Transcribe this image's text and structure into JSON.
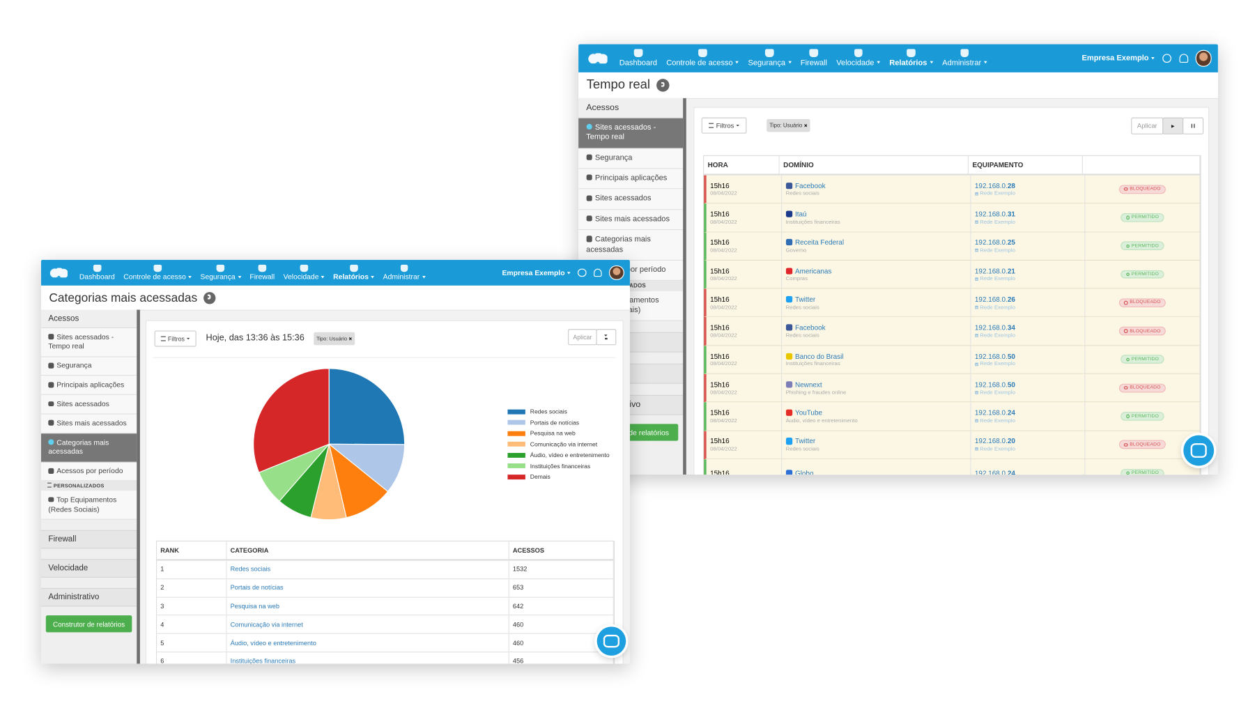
{
  "nav": {
    "items": [
      "Dashboard",
      "Controle de acesso",
      "Segurança",
      "Firewall",
      "Velocidade",
      "Relatórios",
      "Administrar"
    ],
    "company": "Empresa Exemplo"
  },
  "sidebar": {
    "section": "Acessos",
    "items": [
      "Sites acessados - Tempo real",
      "Segurança",
      "Principais aplicações",
      "Sites acessados",
      "Sites mais acessados",
      "Categorias mais acessadas",
      "Acessos por período"
    ],
    "custom_header": "PERSONALIZADOS",
    "custom_items": [
      "Top Equipamentos (Redes Sociais)"
    ],
    "sections": [
      "Firewall",
      "Velocidade",
      "Administrativo"
    ],
    "button": "Construtor de relatórios"
  },
  "realtime": {
    "title": "Tempo real",
    "filters": "Filtros",
    "tag": "Tipo: Usuário",
    "apply": "Aplicar",
    "headers": [
      "HORA",
      "DOMÍNIO",
      "EQUIPAMENTO"
    ],
    "rows": [
      {
        "time": "15h16",
        "date": "08/04/2022",
        "domain": "Facebook",
        "category": "Redes sociais",
        "ip_net": "192.168.0.",
        "ip_host": "28",
        "network": "Rede Exemplo",
        "status": "BLOQUEADO",
        "color": "#d9534f",
        "icon": "#3b5998"
      },
      {
        "time": "15h16",
        "date": "08/04/2022",
        "domain": "Itaú",
        "category": "Instituições financeiras",
        "ip_net": "192.168.0.",
        "ip_host": "31",
        "network": "Rede Exemplo",
        "status": "PERMITIDO",
        "color": "#5cb85c",
        "icon": "#1b3a8c"
      },
      {
        "time": "15h16",
        "date": "08/04/2022",
        "domain": "Receita Federal",
        "category": "Governo",
        "ip_net": "192.168.0.",
        "ip_host": "25",
        "network": "Rede Exemplo",
        "status": "PERMITIDO",
        "color": "#5cb85c",
        "icon": "#2f6db5"
      },
      {
        "time": "15h16",
        "date": "08/04/2022",
        "domain": "Americanas",
        "category": "Compras",
        "ip_net": "192.168.0.",
        "ip_host": "21",
        "network": "Rede Exemplo",
        "status": "PERMITIDO",
        "color": "#5cb85c",
        "icon": "#e0262b"
      },
      {
        "time": "15h16",
        "date": "08/04/2022",
        "domain": "Twitter",
        "category": "Redes sociais",
        "ip_net": "192.168.0.",
        "ip_host": "26",
        "network": "Rede Exemplo",
        "status": "BLOQUEADO",
        "color": "#d9534f",
        "icon": "#1da1f2"
      },
      {
        "time": "15h16",
        "date": "08/04/2022",
        "domain": "Facebook",
        "category": "Redes sociais",
        "ip_net": "192.168.0.",
        "ip_host": "34",
        "network": "Rede Exemplo",
        "status": "BLOQUEADO",
        "color": "#d9534f",
        "icon": "#3b5998"
      },
      {
        "time": "15h16",
        "date": "08/04/2022",
        "domain": "Banco do Brasil",
        "category": "Instituições financeiras",
        "ip_net": "192.168.0.",
        "ip_host": "50",
        "network": "Rede Exemplo",
        "status": "PERMITIDO",
        "color": "#5cb85c",
        "icon": "#e8c600"
      },
      {
        "time": "15h16",
        "date": "08/04/2022",
        "domain": "Newnext",
        "category": "Phishing e fraudes online",
        "ip_net": "192.168.0.",
        "ip_host": "50",
        "network": "Rede Exemplo",
        "status": "BLOQUEADO",
        "color": "#d9534f",
        "icon": "#7f7fb8"
      },
      {
        "time": "15h16",
        "date": "08/04/2022",
        "domain": "YouTube",
        "category": "Áudio, vídeo e entretenimento",
        "ip_net": "192.168.0.",
        "ip_host": "24",
        "network": "Rede Exemplo",
        "status": "PERMITIDO",
        "color": "#5cb85c",
        "icon": "#e52d27"
      },
      {
        "time": "15h16",
        "date": "08/04/2022",
        "domain": "Twitter",
        "category": "Redes sociais",
        "ip_net": "192.168.0.",
        "ip_host": "20",
        "network": "Rede Exemplo",
        "status": "BLOQUEADO",
        "color": "#d9534f",
        "icon": "#1da1f2"
      },
      {
        "time": "15h16",
        "domain": "Globo",
        "ip_net": "192.168.0.",
        "ip_host": "24",
        "status": "PERMITIDO",
        "color": "#5cb85c",
        "icon": "#2c6fd6"
      }
    ]
  },
  "categories": {
    "title": "Categorias mais acessadas",
    "filters": "Filtros",
    "range": "Hoje, das 13:36 às 15:36",
    "tag": "Tipo: Usuário",
    "apply": "Aplicar",
    "headers": [
      "RANK",
      "CATEGORIA",
      "ACESSOS"
    ],
    "rows": [
      [
        1,
        "Redes sociais",
        1532
      ],
      [
        2,
        "Portais de notícias",
        653
      ],
      [
        3,
        "Pesquisa na web",
        642
      ],
      [
        4,
        "Comunicação via internet",
        460
      ],
      [
        5,
        "Áudio, vídeo e entretenimento",
        460
      ],
      [
        6,
        "Instituições financeiras",
        456
      ]
    ]
  },
  "chart_data": {
    "type": "pie",
    "categories": [
      "Redes sociais",
      "Portais de notícias",
      "Pesquisa na web",
      "Comunicação via internet",
      "Áudio, vídeo e entretenimento",
      "Instituições financeiras",
      "Demais"
    ],
    "values": [
      1532,
      653,
      642,
      460,
      460,
      456,
      1900
    ],
    "colors": [
      "#1f77b4",
      "#aec7e8",
      "#ff7f0e",
      "#ffbb78",
      "#2ca02c",
      "#98df8a",
      "#d62728"
    ]
  }
}
